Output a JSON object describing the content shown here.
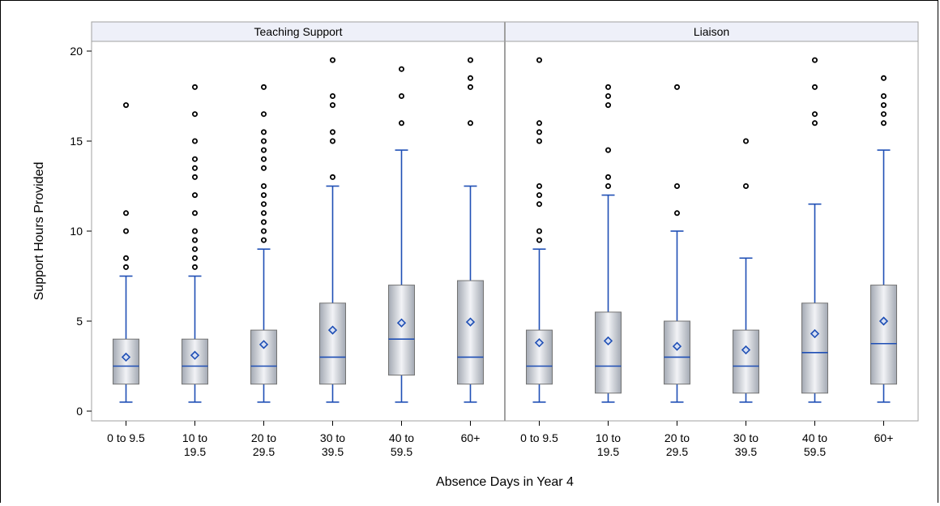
{
  "chart_data": {
    "type": "box",
    "ylabel": "Support Hours Provided",
    "xlabel": "Absence Days in Year 4",
    "ylim": [
      0,
      20
    ],
    "yticks": [
      0,
      5,
      10,
      15,
      20
    ],
    "categories": [
      [
        "0 to 9.5"
      ],
      [
        "10 to",
        "19.5"
      ],
      [
        "20 to",
        "29.5"
      ],
      [
        "30 to",
        "39.5"
      ],
      [
        "40 to",
        "59.5"
      ],
      [
        "60+"
      ]
    ],
    "grid": false,
    "panels": [
      {
        "title": "Teaching Support",
        "boxes": [
          {
            "q1": 1.5,
            "median": 2.5,
            "q3": 4.0,
            "mean": 3.0,
            "whisker_low": 0.5,
            "whisker_high": 7.5,
            "outliers": [
              8.0,
              8.5,
              10.0,
              11.0,
              17.0
            ]
          },
          {
            "q1": 1.5,
            "median": 2.5,
            "q3": 4.0,
            "mean": 3.1,
            "whisker_low": 0.5,
            "whisker_high": 7.5,
            "outliers": [
              8.0,
              8.5,
              9.0,
              9.5,
              10.0,
              11.0,
              12.0,
              13.0,
              13.5,
              14.0,
              15.0,
              16.5,
              18.0
            ]
          },
          {
            "q1": 1.5,
            "median": 2.5,
            "q3": 4.5,
            "mean": 3.7,
            "whisker_low": 0.5,
            "whisker_high": 9.0,
            "outliers": [
              9.5,
              10.0,
              10.5,
              11.0,
              11.5,
              12.0,
              12.5,
              13.5,
              14.0,
              14.5,
              15.0,
              15.5,
              16.5,
              18.0
            ]
          },
          {
            "q1": 1.5,
            "median": 3.0,
            "q3": 6.0,
            "mean": 4.5,
            "whisker_low": 0.5,
            "whisker_high": 12.5,
            "outliers": [
              13.0,
              15.0,
              15.5,
              17.0,
              17.5,
              19.5
            ]
          },
          {
            "q1": 2.0,
            "median": 4.0,
            "q3": 7.0,
            "mean": 4.9,
            "whisker_low": 0.5,
            "whisker_high": 14.5,
            "outliers": [
              16.0,
              17.5,
              19.0
            ]
          },
          {
            "q1": 1.5,
            "median": 3.0,
            "q3": 7.25,
            "mean": 4.95,
            "whisker_low": 0.5,
            "whisker_high": 12.5,
            "outliers": [
              16.0,
              18.0,
              18.5,
              19.5
            ]
          }
        ]
      },
      {
        "title": "Liaison",
        "boxes": [
          {
            "q1": 1.5,
            "median": 2.5,
            "q3": 4.5,
            "mean": 3.8,
            "whisker_low": 0.5,
            "whisker_high": 9.0,
            "outliers": [
              9.5,
              10.0,
              11.5,
              12.0,
              12.5,
              15.0,
              15.5,
              16.0,
              19.5
            ]
          },
          {
            "q1": 1.0,
            "median": 2.5,
            "q3": 5.5,
            "mean": 3.9,
            "whisker_low": 0.5,
            "whisker_high": 12.0,
            "outliers": [
              12.5,
              13.0,
              14.5,
              17.0,
              17.5,
              18.0
            ]
          },
          {
            "q1": 1.5,
            "median": 3.0,
            "q3": 5.0,
            "mean": 3.6,
            "whisker_low": 0.5,
            "whisker_high": 10.0,
            "outliers": [
              11.0,
              12.5,
              18.0
            ]
          },
          {
            "q1": 1.0,
            "median": 2.5,
            "q3": 4.5,
            "mean": 3.4,
            "whisker_low": 0.5,
            "whisker_high": 8.5,
            "outliers": [
              12.5,
              15.0
            ]
          },
          {
            "q1": 1.0,
            "median": 3.25,
            "q3": 6.0,
            "mean": 4.3,
            "whisker_low": 0.5,
            "whisker_high": 11.5,
            "outliers": [
              16.0,
              16.5,
              18.0,
              19.5
            ]
          },
          {
            "q1": 1.5,
            "median": 3.75,
            "q3": 7.0,
            "mean": 5.0,
            "whisker_low": 0.5,
            "whisker_high": 14.5,
            "outliers": [
              16.0,
              16.5,
              17.0,
              17.5,
              18.5
            ]
          }
        ]
      }
    ],
    "colors": {
      "box_fill_dark": "#a3a9b3",
      "box_fill_light": "#f2f3f6",
      "box_stroke": "#737373",
      "whisker": "#1f4fb5",
      "median": "#1f4fb5",
      "mean_marker": "#1f4fb5",
      "outlier": "#000000",
      "panel_header_bg": "#eef0f9",
      "panel_border": "#a0a0a0"
    }
  }
}
